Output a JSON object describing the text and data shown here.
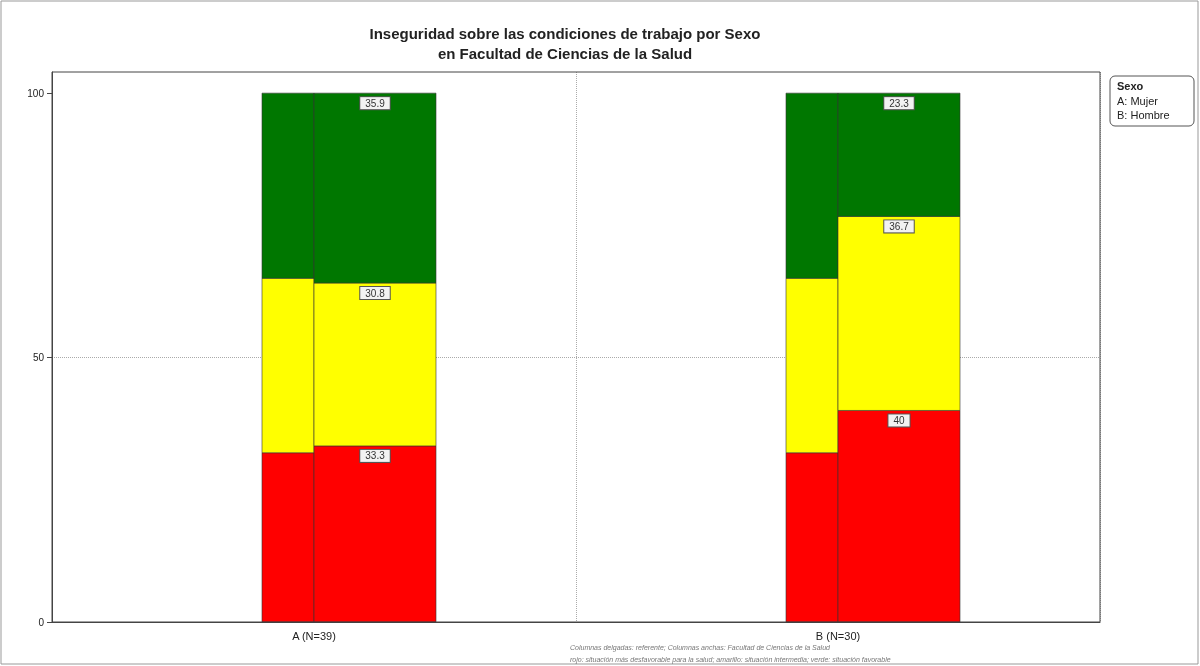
{
  "chart_data": {
    "type": "bar",
    "title": "Inseguridad sobre las condiciones de trabajo por Sexo\nen Facultad de Ciencias de la Salud",
    "categories": [
      "A (N=39)",
      "B (N=30)"
    ],
    "series": [
      {
        "color": "#ff0000",
        "values": [
          32,
          32
        ],
        "base": [
          0,
          0
        ]
      },
      {
        "color": "#ffff00",
        "values": [
          33,
          33
        ],
        "base": [
          32,
          32
        ]
      },
      {
        "color": "#007700",
        "values": [
          35,
          35
        ],
        "base": [
          65,
          65
        ]
      },
      {
        "color": "#ff0000",
        "values": [
          33.3,
          40
        ],
        "base": [
          0,
          0
        ],
        "value_labels": [
          "33.3",
          "40"
        ]
      },
      {
        "color": "#ffff00",
        "values": [
          30.8,
          36.7
        ],
        "base": [
          33.3,
          40
        ],
        "value_labels": [
          "30.8",
          "36.7"
        ]
      },
      {
        "color": "#007700",
        "values": [
          35.9,
          23.3
        ],
        "base": [
          64.1,
          76.7
        ],
        "value_labels": [
          "35.9",
          "23.3"
        ]
      }
    ],
    "ylim": [
      0,
      104
    ],
    "yticks": [
      0,
      50,
      100
    ],
    "grid": true,
    "legend_title": "Sexo",
    "annotations": [
      "A: Mujer",
      "B: Hombre",
      "Columnas delgadas: referente; Columnas anchas: Facultad de Ciencias de la Salud",
      "rojo: situación más desfavorable para la salud; amarillo: situación intermedia; verde: situación favorable"
    ]
  }
}
